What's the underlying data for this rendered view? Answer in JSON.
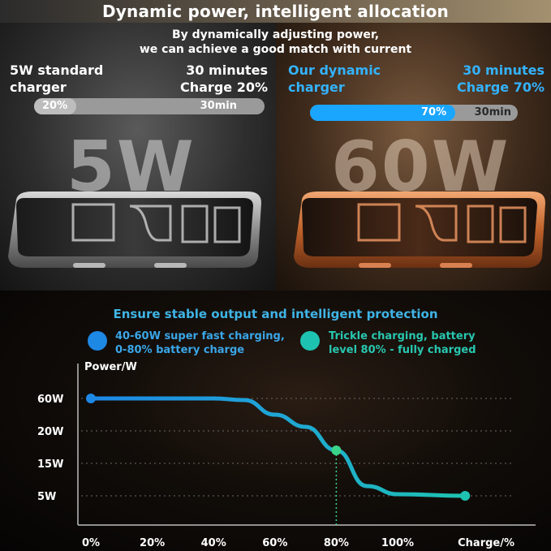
{
  "header": {
    "title": "Dynamic power, intelligent allocation"
  },
  "hero": {
    "subtitle_line1": "By dynamically adjusting power,",
    "subtitle_line2": "we can achieve a good match with current",
    "left": {
      "name_line1": "5W standard",
      "name_line2": "charger",
      "time_line1": "30 minutes",
      "time_line2": "Charge 20%",
      "bar_pct_label": "20%",
      "bar_time_label": "30min",
      "bar_fill": 0.2,
      "watt": "5W"
    },
    "right": {
      "name_line1": "Our dynamic",
      "name_line2": "charger",
      "time_line1": "30 minutes",
      "time_line2": "Charge 70%",
      "bar_pct_label": "70%",
      "bar_time_label": "30min",
      "bar_fill": 0.7,
      "watt": "60W"
    }
  },
  "legend": {
    "title": "Ensure stable output and intelligent protection",
    "blue_line1": "40-60W super fast charging,",
    "blue_line2": "0-80% battery charge",
    "teal_line1": "Trickle charging, battery",
    "teal_line2": "level 80% - fully charged",
    "blue_color": "#1e88e5",
    "teal_color": "#1ec2b0"
  },
  "chart_data": {
    "type": "line",
    "ylabel": "Power/W",
    "xlabel": "Charge/%",
    "x_ticks": [
      "0%",
      "20%",
      "40%",
      "60%",
      "80%",
      "100%"
    ],
    "y_ticks": [
      "60W",
      "20W",
      "15W",
      "5W"
    ],
    "series": [
      {
        "x": [
          0,
          20,
          40,
          50,
          60,
          70,
          80,
          90,
          100,
          122
        ],
        "y": [
          60,
          60,
          60,
          58,
          40,
          25,
          17,
          8,
          5.5,
          5
        ]
      }
    ],
    "marker_points": [
      {
        "x": 0,
        "y": 60
      },
      {
        "x": 80,
        "y": 17
      },
      {
        "x": 122,
        "y": 5
      }
    ],
    "grid": true
  }
}
